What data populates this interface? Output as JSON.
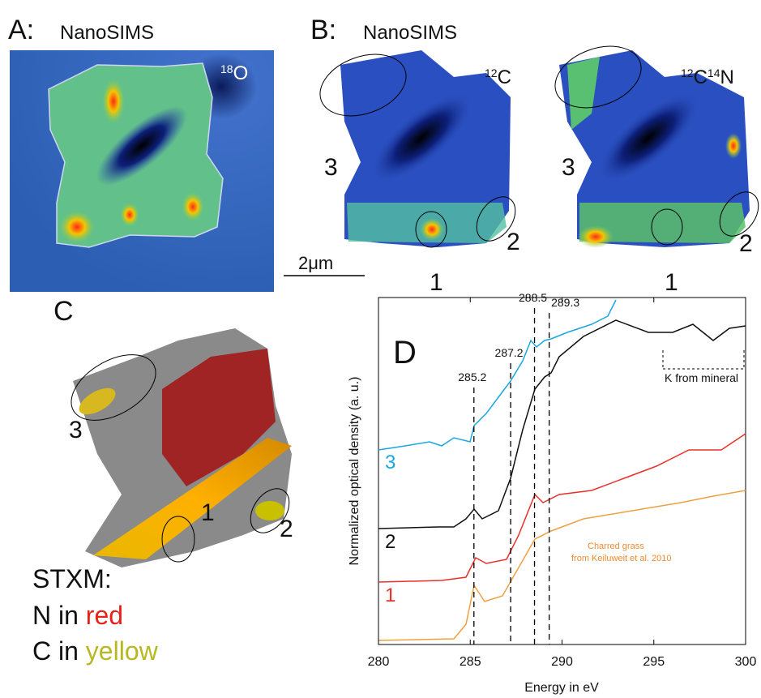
{
  "panel_a": {
    "label": "A:",
    "title": "NanoSIMS",
    "isotope": {
      "mass": "18",
      "element": "O"
    }
  },
  "panel_b": {
    "label": "B:",
    "title": "NanoSIMS",
    "map_left": {
      "isotope": {
        "mass": "12",
        "element": "C"
      },
      "regions": [
        "3",
        "1",
        "2"
      ]
    },
    "map_right": {
      "isotope": {
        "mass": "12",
        "element": "C",
        "mass2": "14",
        "element2": "N"
      },
      "regions": [
        "3",
        "1",
        "2"
      ]
    },
    "scale_bar": "2μm"
  },
  "panel_c": {
    "label": "C",
    "regions": [
      "3",
      "1",
      "2"
    ],
    "legend_title": "STXM:",
    "legend_n": {
      "text": "N in ",
      "color_word": "red"
    },
    "legend_c": {
      "text": "C in ",
      "color_word": "yellow"
    }
  },
  "panel_d": {
    "label": "D",
    "chart_data": {
      "type": "spectra",
      "xlabel": "Energy in eV",
      "ylabel": "Normalized optical density (a. u.)",
      "xlim": [
        280,
        300
      ],
      "xticks": [
        280,
        285,
        290,
        295,
        300
      ],
      "peaks": [
        285.2,
        287.2,
        288.5,
        289.3
      ],
      "curve_labels": [
        "3",
        "2",
        "1"
      ],
      "annotations": {
        "mineral": "K from mineral",
        "reference_1": "Charred grass",
        "reference_2": "from Keiluweit et al. 2010"
      }
    }
  }
}
